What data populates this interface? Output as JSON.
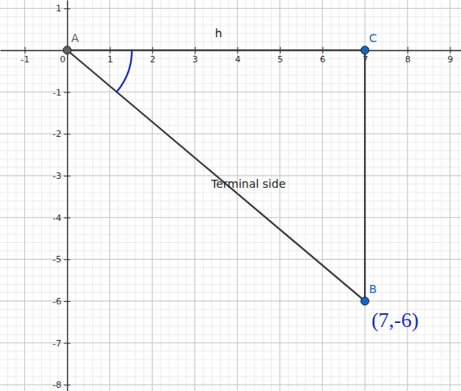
{
  "chart_data": {
    "type": "scatter",
    "xlim": [
      -1.58,
      9.26
    ],
    "ylim": [
      -8.15,
      1.2
    ],
    "xticks": [
      -1,
      0,
      1,
      2,
      3,
      4,
      5,
      6,
      7,
      8,
      9
    ],
    "yticks": [
      -8,
      -7,
      -6,
      -5,
      -4,
      -3,
      -2,
      -1,
      1
    ],
    "grid": true,
    "points": [
      {
        "label": "A",
        "x": 0,
        "y": 0,
        "color": "#616161"
      },
      {
        "label": "C",
        "x": 7,
        "y": 0,
        "color": "#1565c0"
      },
      {
        "label": "B",
        "x": 7,
        "y": -6,
        "color": "#1565c0"
      }
    ],
    "segments": [
      {
        "from": 0,
        "to": 1,
        "label": "h"
      },
      {
        "from": 0,
        "to": 2,
        "label": "Terminal side"
      },
      {
        "from": 1,
        "to": 2
      }
    ],
    "angle_marks": [
      {
        "vertex": 0,
        "from": 1,
        "to": 2,
        "color": "#1a2db8"
      }
    ],
    "annotations": [
      {
        "text": "(7,-6)",
        "point": 2,
        "color": "#1a2db8"
      }
    ]
  }
}
